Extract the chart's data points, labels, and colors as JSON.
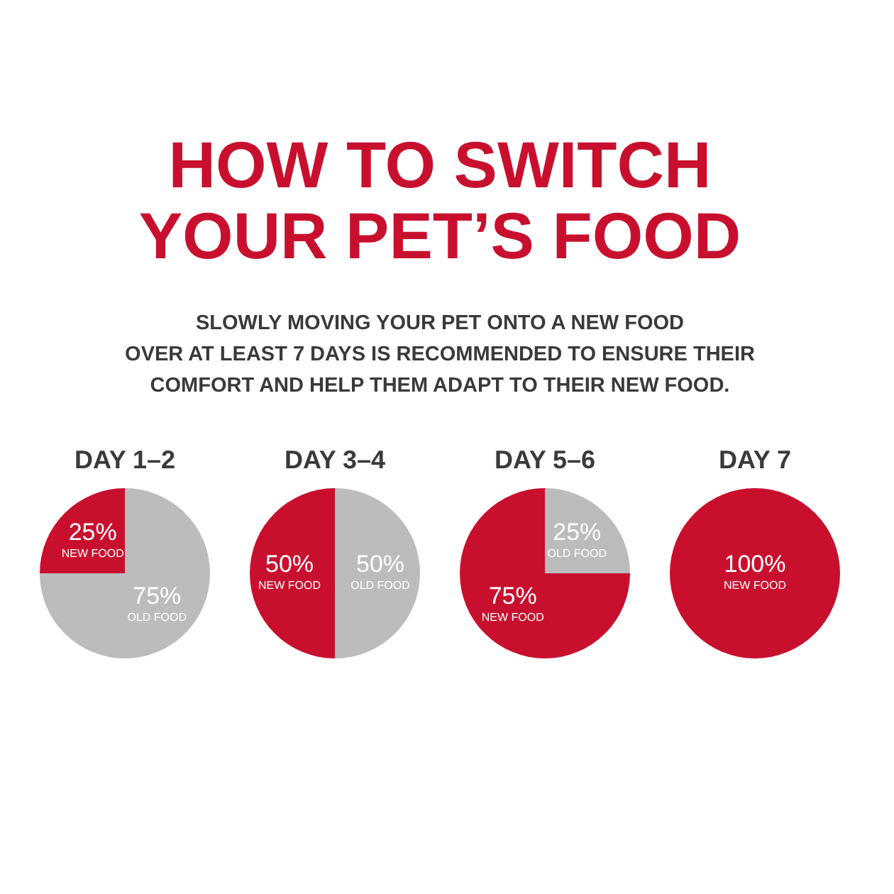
{
  "chart_data": [
    {
      "type": "other",
      "title": "HOW TO SWITCH\nYOUR PET’S FOOD",
      "subtitle": "SLOWLY MOVING YOUR PET ONTO A NEW FOOD\nOVER AT LEAST 7 DAYS IS RECOMMENDED TO ENSURE THEIR\nCOMFORT AND HELP THEM ADAPT TO THEIR NEW FOOD."
    },
    {
      "type": "pie",
      "title": "DAY 1–2",
      "categories": [
        "OLD FOOD",
        "NEW FOOD"
      ],
      "values": [
        75,
        25
      ],
      "colors": [
        "#bcbcbe",
        "#c8102e"
      ],
      "value_labels": [
        "75%",
        "25%"
      ]
    },
    {
      "type": "pie",
      "title": "DAY 3–4",
      "categories": [
        "OLD FOOD",
        "NEW FOOD"
      ],
      "values": [
        50,
        50
      ],
      "colors": [
        "#bcbcbe",
        "#c8102e"
      ],
      "value_labels": [
        "50%",
        "50%"
      ]
    },
    {
      "type": "pie",
      "title": "DAY 5–6",
      "categories": [
        "OLD FOOD",
        "NEW FOOD"
      ],
      "values": [
        25,
        75
      ],
      "colors": [
        "#bcbcbe",
        "#c8102e"
      ],
      "value_labels": [
        "25%",
        "75%"
      ]
    },
    {
      "type": "pie",
      "title": "DAY 7",
      "categories": [
        "NEW FOOD"
      ],
      "values": [
        100
      ],
      "colors": [
        "#c8102e"
      ],
      "value_labels": [
        "100%"
      ]
    }
  ]
}
